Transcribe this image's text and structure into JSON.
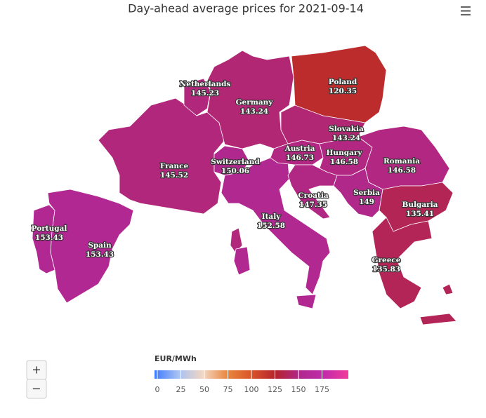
{
  "chart_data": {
    "type": "map",
    "title": "Day-ahead average prices for 2021-09-14",
    "unit": "EUR/MWh",
    "regions": [
      {
        "name": "Portugal",
        "value": 153.43
      },
      {
        "name": "Spain",
        "value": 153.43
      },
      {
        "name": "France",
        "value": 145.52
      },
      {
        "name": "Netherlands",
        "value": 145.23
      },
      {
        "name": "Germany",
        "value": 143.24
      },
      {
        "name": "Switzerland",
        "value": 150.06
      },
      {
        "name": "Italy",
        "value": 152.58
      },
      {
        "name": "Poland",
        "value": 120.35
      },
      {
        "name": "Slovakia",
        "value": 143.24
      },
      {
        "name": "Austria",
        "value": 146.73
      },
      {
        "name": "Hungary",
        "value": 146.58
      },
      {
        "name": "Croatia",
        "value": 147.35
      },
      {
        "name": "Romania",
        "value": 146.58
      },
      {
        "name": "Serbia",
        "value": 149
      },
      {
        "name": "Bulgaria",
        "value": 135.41
      },
      {
        "name": "Greece",
        "value": 135.83
      }
    ],
    "colorlim": [
      0,
      200
    ],
    "colorticks": [
      0,
      25,
      50,
      75,
      100,
      125,
      150,
      175
    ],
    "colorscale": [
      {
        "value": 0,
        "color": "#3f7bff"
      },
      {
        "value": 25,
        "color": "#a9c2f2"
      },
      {
        "value": 50,
        "color": "#f2d6c2"
      },
      {
        "value": 75,
        "color": "#e9873e"
      },
      {
        "value": 100,
        "color": "#d9542a"
      },
      {
        "value": 125,
        "color": "#b5232c"
      },
      {
        "value": 150,
        "color": "#b0288e"
      },
      {
        "value": 175,
        "color": "#c22aab"
      },
      {
        "value": 200,
        "color": "#f03c98"
      }
    ],
    "zoom": {
      "in": "+",
      "out": "−"
    }
  }
}
